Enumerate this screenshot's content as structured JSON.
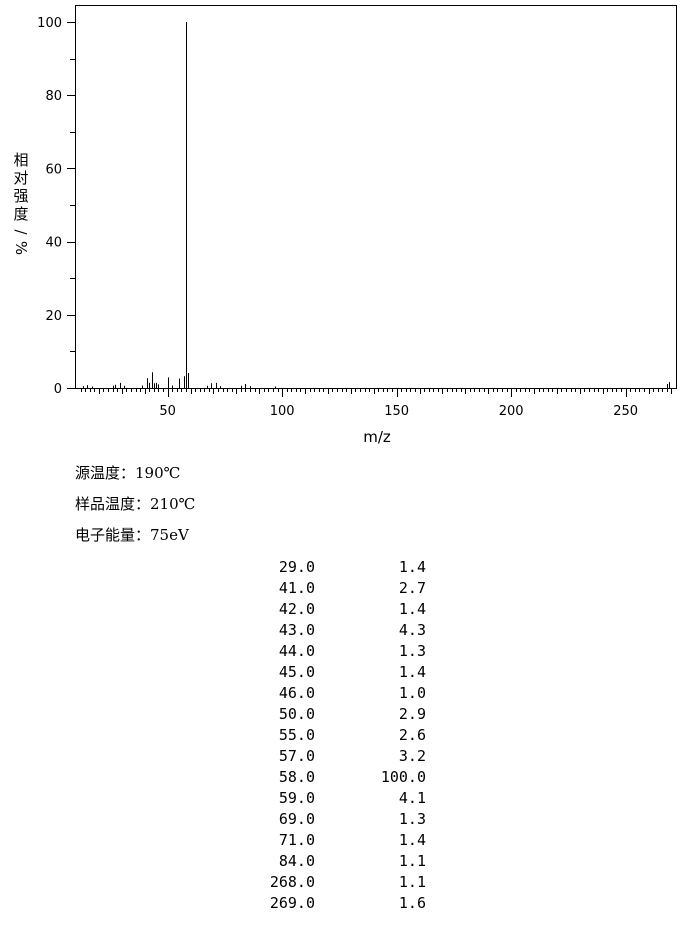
{
  "chart_data": {
    "type": "bar",
    "ylabel": "相对强度/%",
    "xlabel": "m/z",
    "xlim": [
      10,
      272
    ],
    "ylim": [
      0,
      100
    ],
    "x_ticks": [
      50,
      100,
      150,
      200,
      250
    ],
    "y_ticks": [
      0,
      20,
      40,
      60,
      80,
      100
    ],
    "grid": false,
    "peaks": [
      {
        "mz": 13,
        "intensity": 0.5
      },
      {
        "mz": 15,
        "intensity": 0.8
      },
      {
        "mz": 17,
        "intensity": 0.4
      },
      {
        "mz": 26,
        "intensity": 0.6
      },
      {
        "mz": 27,
        "intensity": 0.9
      },
      {
        "mz": 29,
        "intensity": 1.4
      },
      {
        "mz": 31,
        "intensity": 0.6
      },
      {
        "mz": 39,
        "intensity": 0.7
      },
      {
        "mz": 41,
        "intensity": 2.7
      },
      {
        "mz": 42,
        "intensity": 1.4
      },
      {
        "mz": 43,
        "intensity": 4.3
      },
      {
        "mz": 44,
        "intensity": 1.3
      },
      {
        "mz": 45,
        "intensity": 1.4
      },
      {
        "mz": 46,
        "intensity": 1.0
      },
      {
        "mz": 50,
        "intensity": 2.9
      },
      {
        "mz": 52,
        "intensity": 0.7
      },
      {
        "mz": 55,
        "intensity": 2.6
      },
      {
        "mz": 57,
        "intensity": 3.2
      },
      {
        "mz": 58,
        "intensity": 100.0
      },
      {
        "mz": 59,
        "intensity": 4.1
      },
      {
        "mz": 67,
        "intensity": 0.6
      },
      {
        "mz": 69,
        "intensity": 1.3
      },
      {
        "mz": 71,
        "intensity": 1.4
      },
      {
        "mz": 73,
        "intensity": 0.5
      },
      {
        "mz": 82,
        "intensity": 0.6
      },
      {
        "mz": 84,
        "intensity": 1.1
      },
      {
        "mz": 86,
        "intensity": 0.5
      },
      {
        "mz": 97,
        "intensity": 0.4
      },
      {
        "mz": 268,
        "intensity": 1.1
      },
      {
        "mz": 269,
        "intensity": 1.6
      }
    ]
  },
  "conditions": [
    {
      "text": "源温度：190℃"
    },
    {
      "text": "样品温度：210℃"
    },
    {
      "text": "电子能量：75eV"
    }
  ],
  "peak_table": [
    {
      "mz": "29.0",
      "intensity": "1.4"
    },
    {
      "mz": "41.0",
      "intensity": "2.7"
    },
    {
      "mz": "42.0",
      "intensity": "1.4"
    },
    {
      "mz": "43.0",
      "intensity": "4.3"
    },
    {
      "mz": "44.0",
      "intensity": "1.3"
    },
    {
      "mz": "45.0",
      "intensity": "1.4"
    },
    {
      "mz": "46.0",
      "intensity": "1.0"
    },
    {
      "mz": "50.0",
      "intensity": "2.9"
    },
    {
      "mz": "55.0",
      "intensity": "2.6"
    },
    {
      "mz": "57.0",
      "intensity": "3.2"
    },
    {
      "mz": "58.0",
      "intensity": "100.0"
    },
    {
      "mz": "59.0",
      "intensity": "4.1"
    },
    {
      "mz": "69.0",
      "intensity": "1.3"
    },
    {
      "mz": "71.0",
      "intensity": "1.4"
    },
    {
      "mz": "84.0",
      "intensity": "1.1"
    },
    {
      "mz": "268.0",
      "intensity": "1.1"
    },
    {
      "mz": "269.0",
      "intensity": "1.6"
    }
  ]
}
